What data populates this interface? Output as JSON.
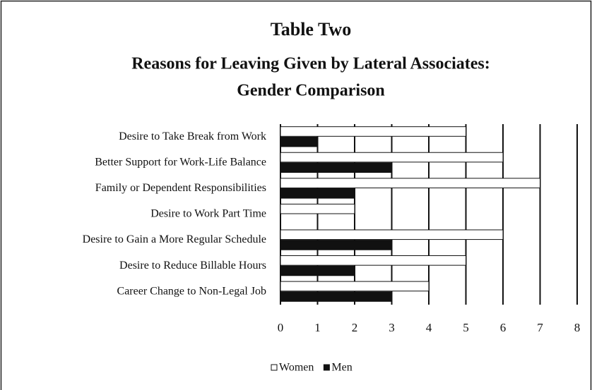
{
  "chart_data": {
    "type": "bar",
    "horizontal": true,
    "title": "Table Two",
    "subtitle": [
      "Reasons for Leaving Given by Lateral Associates:",
      "Gender Comparison"
    ],
    "categories": [
      "Desire to Take Break from Work",
      "Better Support for Work-Life Balance",
      "Family or Dependent Responsibilities",
      "Desire to Work Part Time",
      "Desire to Gain a More Regular Schedule",
      "Desire to Reduce Billable Hours",
      "Career Change to Non-Legal Job"
    ],
    "series": [
      {
        "name": "Women",
        "color": "#ffffff",
        "values": [
          5,
          6,
          7,
          2,
          6,
          5,
          4
        ]
      },
      {
        "name": "Men",
        "color": "#111111",
        "values": [
          1,
          3,
          2,
          0,
          3,
          2,
          3
        ]
      }
    ],
    "xlim": [
      0,
      8
    ],
    "xticks": [
      0,
      1,
      2,
      3,
      4,
      5,
      6,
      7,
      8
    ],
    "grid": true,
    "legend": "bottom"
  }
}
